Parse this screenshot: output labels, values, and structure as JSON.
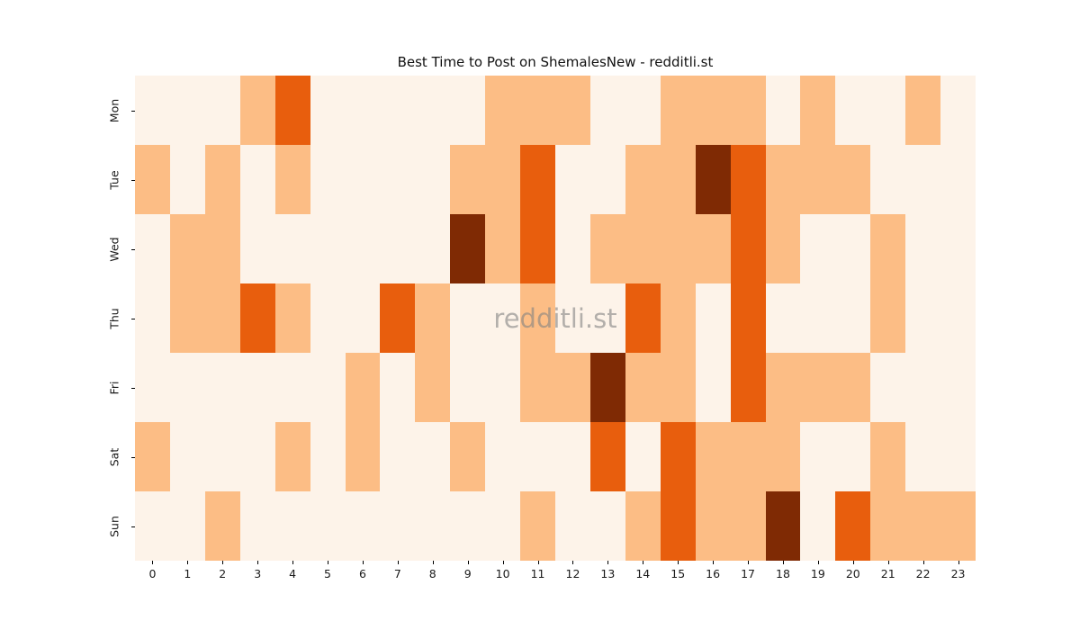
{
  "title": "Best Time to Post on ShemalesNew - redditli.st",
  "watermark": "redditli.st",
  "chart_data": {
    "type": "heatmap",
    "title": "Best Time to Post on ShemalesNew - redditli.st",
    "xlabel": "",
    "ylabel": "",
    "x_labels": [
      "0",
      "1",
      "2",
      "3",
      "4",
      "5",
      "6",
      "7",
      "8",
      "9",
      "10",
      "11",
      "12",
      "13",
      "14",
      "15",
      "16",
      "17",
      "18",
      "19",
      "20",
      "21",
      "22",
      "23"
    ],
    "y_labels": [
      "Mon",
      "Tue",
      "Wed",
      "Thu",
      "Fri",
      "Sat",
      "Sun"
    ],
    "values": [
      [
        0,
        0,
        0,
        1,
        2,
        0,
        0,
        0,
        0,
        0,
        1,
        1,
        1,
        0,
        0,
        1,
        1,
        1,
        0,
        1,
        0,
        0,
        1,
        0
      ],
      [
        1,
        0,
        1,
        0,
        1,
        0,
        0,
        0,
        0,
        1,
        1,
        2,
        0,
        0,
        1,
        1,
        3,
        2,
        1,
        1,
        1,
        0,
        0,
        0
      ],
      [
        0,
        1,
        1,
        0,
        0,
        0,
        0,
        0,
        0,
        3,
        1,
        2,
        0,
        1,
        1,
        1,
        1,
        2,
        1,
        0,
        0,
        1,
        0,
        0
      ],
      [
        0,
        1,
        1,
        2,
        1,
        0,
        0,
        2,
        1,
        0,
        0,
        1,
        0,
        0,
        2,
        1,
        0,
        2,
        0,
        0,
        0,
        1,
        0,
        0
      ],
      [
        0,
        0,
        0,
        0,
        0,
        0,
        1,
        0,
        1,
        0,
        0,
        1,
        1,
        3,
        1,
        1,
        0,
        2,
        1,
        1,
        1,
        0,
        0,
        0
      ],
      [
        1,
        0,
        0,
        0,
        1,
        0,
        1,
        0,
        0,
        1,
        0,
        0,
        0,
        2,
        0,
        2,
        1,
        1,
        1,
        0,
        0,
        1,
        0,
        0
      ],
      [
        0,
        0,
        1,
        0,
        0,
        0,
        0,
        0,
        0,
        0,
        0,
        1,
        0,
        0,
        1,
        2,
        1,
        1,
        3,
        0,
        2,
        1,
        1,
        1
      ]
    ],
    "value_levels": [
      0,
      1,
      2,
      3
    ],
    "palette": {
      "0": "#fdf3e9",
      "1": "#fcbd85",
      "2": "#e85e0d",
      "3": "#7f2a04"
    },
    "colormap": "Oranges",
    "legend_position": "none",
    "grid": "off",
    "y_tick_rotation": 90
  }
}
